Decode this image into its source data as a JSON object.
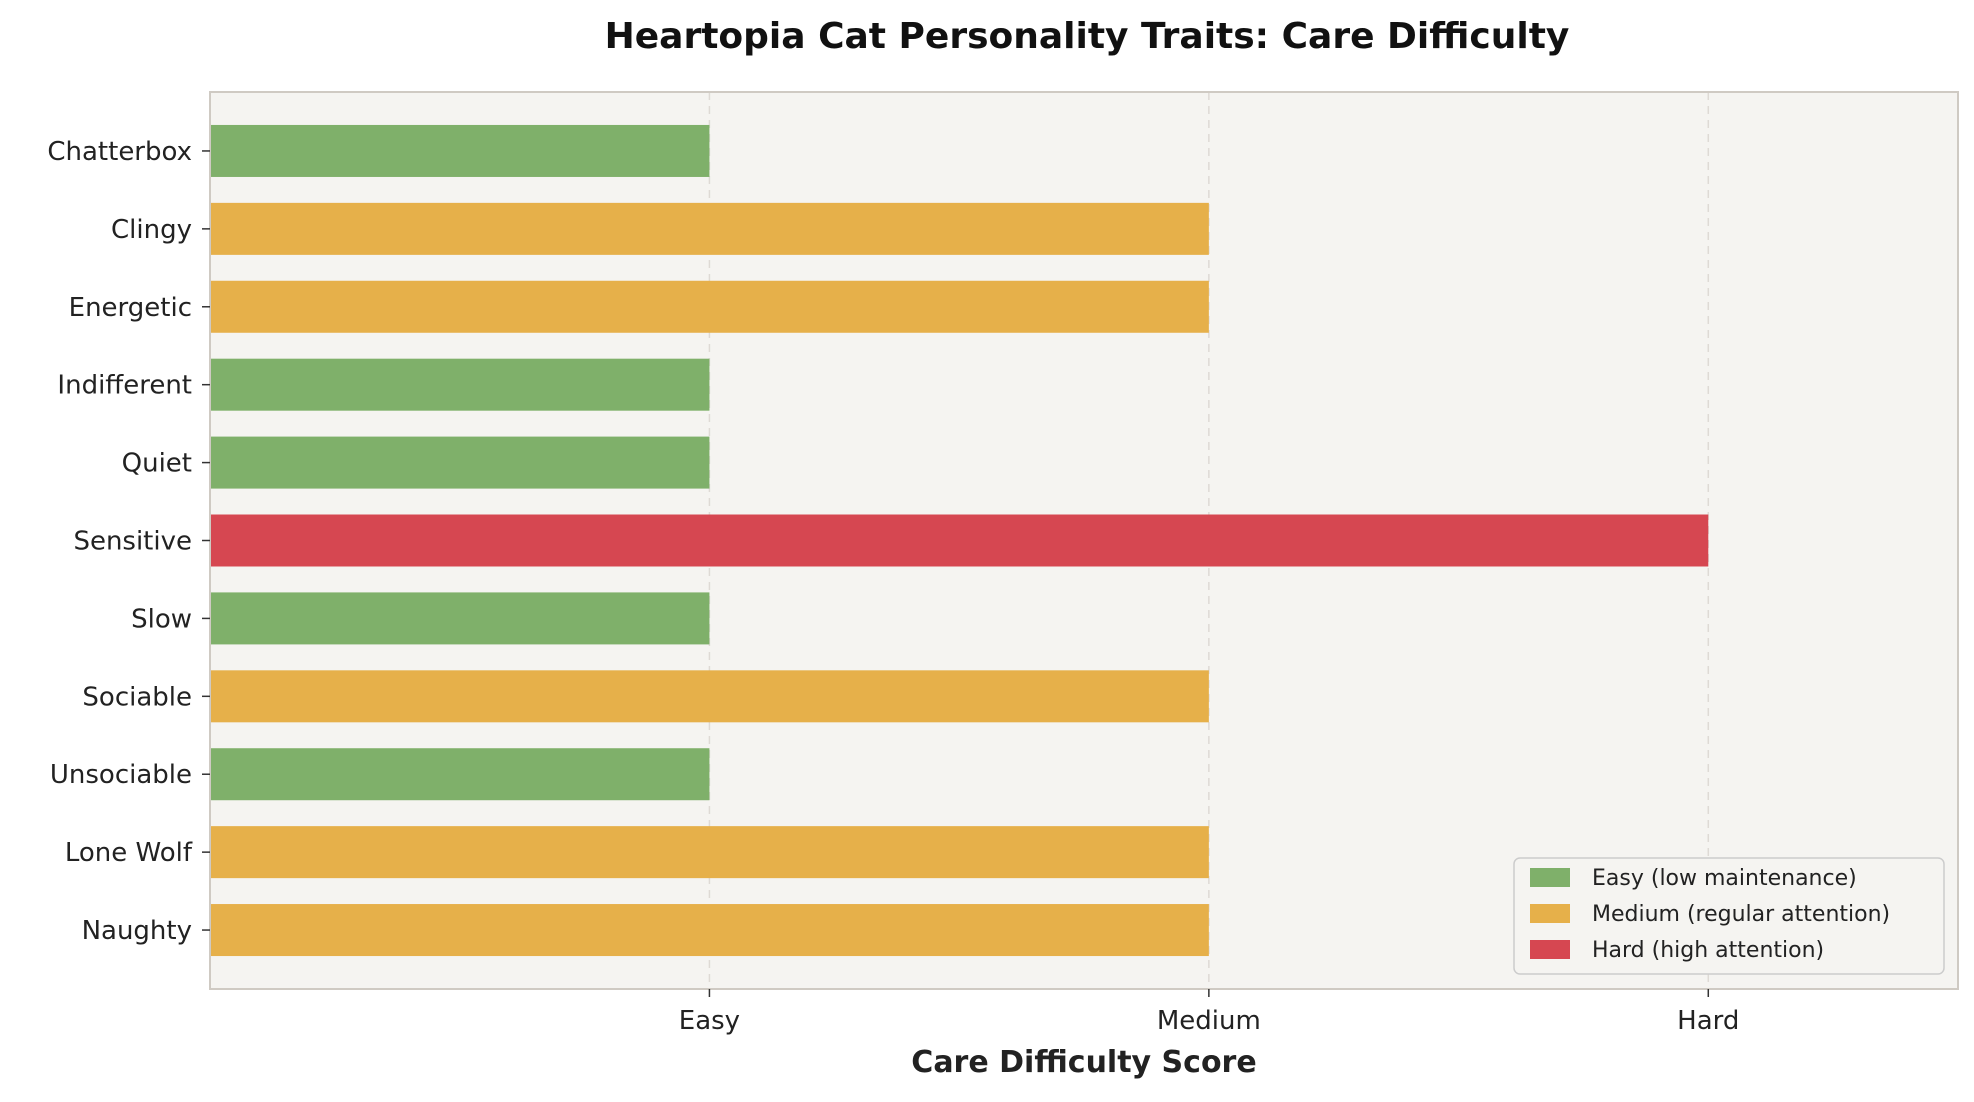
{
  "chart_data": {
    "type": "bar",
    "orientation": "horizontal",
    "title": "Heartopia Cat Personality Traits: Care Difficulty",
    "xlabel": "Care Difficulty Score",
    "ylabel": "",
    "categories": [
      "Chatterbox",
      "Clingy",
      "Energetic",
      "Indifferent",
      "Quiet",
      "Sensitive",
      "Slow",
      "Sociable",
      "Unsociable",
      "Lone Wolf",
      "Naughty"
    ],
    "values": [
      1,
      2,
      2,
      1,
      1,
      3,
      1,
      2,
      1,
      2,
      2
    ],
    "levels": [
      "Easy",
      "Medium",
      "Medium",
      "Easy",
      "Easy",
      "Hard",
      "Easy",
      "Medium",
      "Easy",
      "Medium",
      "Medium"
    ],
    "xlim": [
      0,
      3.5
    ],
    "xticks": [
      1,
      2,
      3
    ],
    "xtick_labels": [
      "Easy",
      "Medium",
      "Hard"
    ],
    "grid": "x-dashed",
    "legend_position": "bottom-right",
    "legend": [
      {
        "label": "Easy (low maintenance)",
        "color": "#7fb06a",
        "level": "Easy"
      },
      {
        "label": "Medium (regular attention)",
        "color": "#e6b04a",
        "level": "Medium"
      },
      {
        "label": "Hard (high attention)",
        "color": "#d64751",
        "level": "Hard"
      }
    ],
    "colors": {
      "Easy": "#7fb06a",
      "Medium": "#e6b04a",
      "Hard": "#d64751"
    },
    "background": "#f5f4f1"
  }
}
